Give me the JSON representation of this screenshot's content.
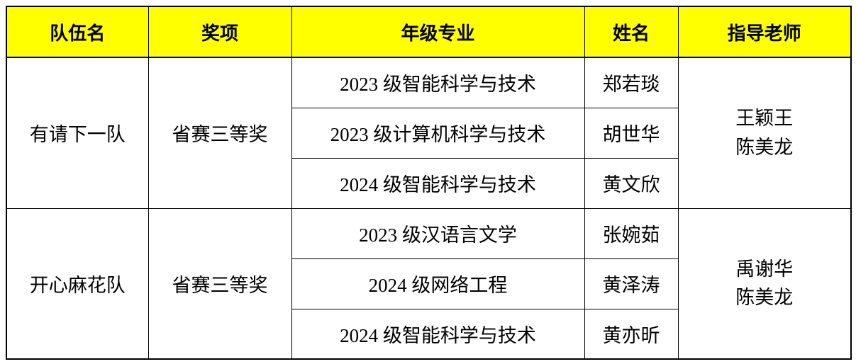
{
  "table": {
    "headers": [
      "队伍名",
      "奖项",
      "年级专业",
      "姓名",
      "指导老师"
    ],
    "teams": [
      {
        "name": "有请下一队",
        "award": "省赛三等奖",
        "members": [
          {
            "major": "2023 级智能科学与技术",
            "name": "郑若琰"
          },
          {
            "major": "2023 级计算机科学与技术",
            "name": "胡世华"
          },
          {
            "major": "2024 级智能科学与技术",
            "name": "黄文欣"
          }
        ],
        "advisors": [
          "王颖王",
          "陈美龙"
        ]
      },
      {
        "name": "开心麻花队",
        "award": "省赛三等奖",
        "members": [
          {
            "major": "2023 级汉语言文学",
            "name": "张婉茹"
          },
          {
            "major": "2024 级网络工程",
            "name": "黄泽涛"
          },
          {
            "major": "2024 级智能科学与技术",
            "name": "黄亦昕"
          }
        ],
        "advisors": [
          "禹谢华",
          "陈美龙"
        ]
      }
    ],
    "colors": {
      "header_bg": "#FFFF00",
      "border": "#000000",
      "text": "#000000",
      "page_bg": "#FFFFFF"
    }
  }
}
